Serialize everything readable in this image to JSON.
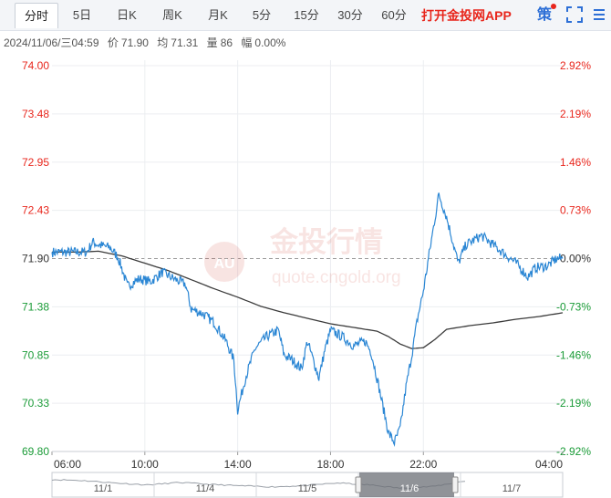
{
  "toolbar": {
    "tabs": [
      "分时",
      "5日",
      "日K",
      "周K",
      "月K",
      "5分",
      "15分",
      "30分",
      "60分"
    ],
    "active_tab": "分时",
    "app_link": "打开金投网APP",
    "strategy_label": "策"
  },
  "quote_info": {
    "datetime": "2024/11/06/三04:59",
    "price_label": "价",
    "price": "71.90",
    "avg_label": "均",
    "avg": "71.31",
    "volume_label": "量",
    "volume": "86",
    "change_label": "幅",
    "change": "0.00%"
  },
  "watermark": {
    "brand": "金投行情",
    "url": "quote.cngold.org",
    "badge": "AU"
  },
  "colors": {
    "up": "#e8261c",
    "down": "#1a9b37",
    "price_line": "#2a86d4",
    "avg_line": "#3b3b3b",
    "baseline": "#9a9a9a"
  },
  "chart_data": {
    "type": "line",
    "x_unit": "time (hh:mm), session 06:00 to 04:00 next day",
    "x_tick_labels": [
      "06:00",
      "10:00",
      "14:00",
      "18:00",
      "22:00",
      "04:00"
    ],
    "y_tick_labels_left": [
      "74.00",
      "73.48",
      "72.95",
      "72.43",
      "71.90",
      "71.38",
      "70.85",
      "70.33",
      "69.80"
    ],
    "y_tick_labels_right": [
      "2.92%",
      "2.19%",
      "1.46%",
      "0.73%",
      "0.00%",
      "-0.73%",
      "-1.46%",
      "-2.19%",
      "-2.92%"
    ],
    "ylim": [
      69.8,
      74.0
    ],
    "reference_price": 71.9,
    "grid": true,
    "series": [
      {
        "name": "价",
        "points": [
          [
            "06:00",
            71.97
          ],
          [
            "06:30",
            71.97
          ],
          [
            "07:00",
            71.97
          ],
          [
            "07:30",
            71.97
          ],
          [
            "07:45",
            72.08
          ],
          [
            "08:00",
            72.05
          ],
          [
            "08:30",
            72.02
          ],
          [
            "08:50",
            71.92
          ],
          [
            "09:00",
            71.8
          ],
          [
            "09:15",
            71.6
          ],
          [
            "09:45",
            71.68
          ],
          [
            "10:15",
            71.65
          ],
          [
            "10:45",
            71.75
          ],
          [
            "11:15",
            71.68
          ],
          [
            "11:45",
            71.62
          ],
          [
            "12:00",
            71.35
          ],
          [
            "12:30",
            71.3
          ],
          [
            "13:00",
            71.2
          ],
          [
            "13:30",
            71.0
          ],
          [
            "13:50",
            70.8
          ],
          [
            "14:00",
            70.25
          ],
          [
            "14:20",
            70.6
          ],
          [
            "14:45",
            70.92
          ],
          [
            "15:15",
            71.05
          ],
          [
            "15:45",
            71.12
          ],
          [
            "16:00",
            70.85
          ],
          [
            "16:20",
            70.8
          ],
          [
            "16:45",
            70.7
          ],
          [
            "17:00",
            71.0
          ],
          [
            "17:15",
            70.8
          ],
          [
            "17:30",
            70.6
          ],
          [
            "17:45",
            70.9
          ],
          [
            "18:00",
            71.12
          ],
          [
            "18:30",
            71.05
          ],
          [
            "19:00",
            70.95
          ],
          [
            "19:30",
            71.0
          ],
          [
            "19:45",
            70.88
          ],
          [
            "20:00",
            70.6
          ],
          [
            "20:15",
            70.3
          ],
          [
            "20:30",
            70.0
          ],
          [
            "20:45",
            69.9
          ],
          [
            "21:00",
            70.05
          ],
          [
            "21:15",
            70.5
          ],
          [
            "21:30",
            70.85
          ],
          [
            "21:45",
            71.25
          ],
          [
            "22:00",
            71.55
          ],
          [
            "22:15",
            71.95
          ],
          [
            "22:40",
            72.6
          ],
          [
            "23:00",
            72.35
          ],
          [
            "23:15",
            72.1
          ],
          [
            "23:30",
            71.85
          ],
          [
            "23:50",
            72.05
          ],
          [
            "00:30",
            72.15
          ],
          [
            "01:00",
            72.05
          ],
          [
            "01:30",
            71.95
          ],
          [
            "02:00",
            71.85
          ],
          [
            "02:30",
            71.7
          ],
          [
            "02:50",
            71.8
          ],
          [
            "03:20",
            71.82
          ],
          [
            "03:45",
            71.9
          ],
          [
            "04:00",
            71.9
          ]
        ]
      },
      {
        "name": "均",
        "points": [
          [
            "06:00",
            71.97
          ],
          [
            "07:00",
            71.97
          ],
          [
            "08:00",
            71.98
          ],
          [
            "09:00",
            71.93
          ],
          [
            "10:00",
            71.85
          ],
          [
            "11:00",
            71.77
          ],
          [
            "12:00",
            71.67
          ],
          [
            "13:00",
            71.57
          ],
          [
            "14:00",
            71.48
          ],
          [
            "15:00",
            71.38
          ],
          [
            "16:00",
            71.31
          ],
          [
            "17:00",
            71.25
          ],
          [
            "18:00",
            71.19
          ],
          [
            "19:00",
            71.15
          ],
          [
            "20:00",
            71.11
          ],
          [
            "20:30",
            71.05
          ],
          [
            "21:00",
            70.97
          ],
          [
            "21:30",
            70.92
          ],
          [
            "22:00",
            70.93
          ],
          [
            "22:30",
            71.02
          ],
          [
            "23:00",
            71.13
          ],
          [
            "00:00",
            71.17
          ],
          [
            "01:00",
            71.2
          ],
          [
            "02:00",
            71.24
          ],
          [
            "03:00",
            71.27
          ],
          [
            "04:00",
            71.31
          ]
        ]
      }
    ]
  },
  "navigator": {
    "date_labels": [
      "11/1",
      "11/4",
      "11/5",
      "11/6",
      "11/7"
    ],
    "selected": "11/6"
  }
}
